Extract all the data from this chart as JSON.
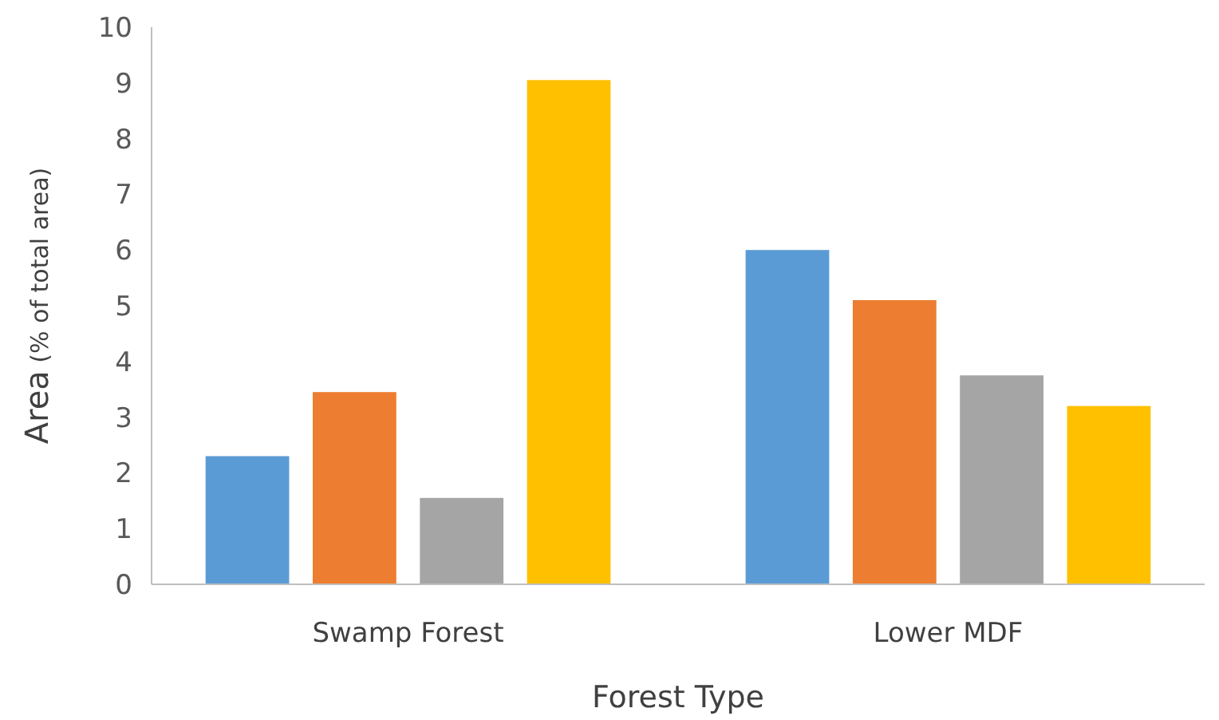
{
  "chart_data": {
    "type": "bar",
    "xlabel": "Forest Type",
    "ylabel": "Area (% of total area)",
    "categories": [
      "Swamp Forest",
      "Lower MDF"
    ],
    "series": [
      {
        "color": "#5b9bd5",
        "values": [
          2.3,
          6.0
        ]
      },
      {
        "color": "#ed7d31",
        "values": [
          3.45,
          5.1
        ]
      },
      {
        "color": "#a5a5a5",
        "values": [
          1.55,
          3.75
        ]
      },
      {
        "color": "#ffc000",
        "values": [
          9.05,
          3.2
        ]
      }
    ],
    "ylim": [
      0,
      10
    ],
    "yticks": [
      0,
      1,
      2,
      3,
      4,
      5,
      6,
      7,
      8,
      9,
      10
    ],
    "grid": false
  }
}
